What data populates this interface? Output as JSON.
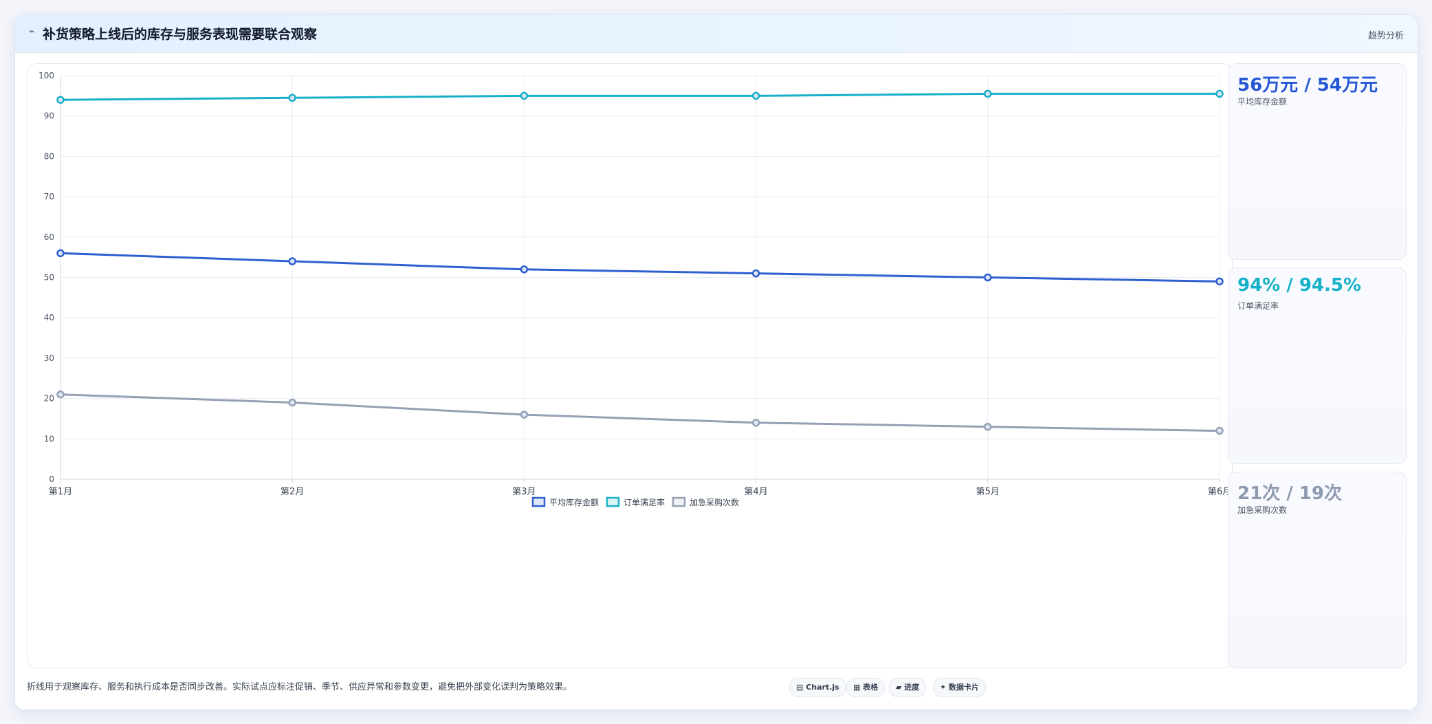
{
  "header": {
    "icon": "trend-icon",
    "title": "补货策略上线后的库存与服务表现需要联合观察",
    "tag": "趋势分析"
  },
  "chart_data": {
    "type": "line",
    "categories": [
      "第1月",
      "第2月",
      "第3月",
      "第4月",
      "第5月",
      "第6月"
    ],
    "series": [
      {
        "name": "平均库存金额",
        "color": "#2f5fd0",
        "values": [
          56,
          54,
          52,
          51,
          50,
          49
        ]
      },
      {
        "name": "订单满足率",
        "color": "#17b0c8",
        "values": [
          94,
          94.5,
          95,
          95,
          95.5,
          95.5
        ]
      },
      {
        "name": "加急采购次数",
        "color": "#94a0b4",
        "values": [
          21,
          19,
          16,
          14,
          13,
          12
        ]
      }
    ],
    "ylim": [
      0,
      100
    ],
    "yticks": [
      0,
      10,
      20,
      30,
      40,
      50,
      60,
      70,
      80,
      90,
      100
    ],
    "grid": true,
    "legend": "bottom"
  },
  "kpis": [
    {
      "value": "56万元 / 54万元",
      "label": "平均库存金额",
      "color": "#2457d6"
    },
    {
      "value": "94% / 94.5%",
      "label": "订单满足率",
      "color": "#14b1c8"
    },
    {
      "value": "21次 / 19次",
      "label": "加急采购次数",
      "color": "#8e9ab0"
    }
  ],
  "footer": {
    "note": "折线用于观察库存、服务和执行成本是否同步改善。实际试点应标注促销、季节、供应异常和参数变更，避免把外部变化误判为策略效果。",
    "pills": [
      "▤ Chart.js",
      "▦ 表格",
      "▰ 进度",
      "✦ 数据卡片"
    ]
  }
}
